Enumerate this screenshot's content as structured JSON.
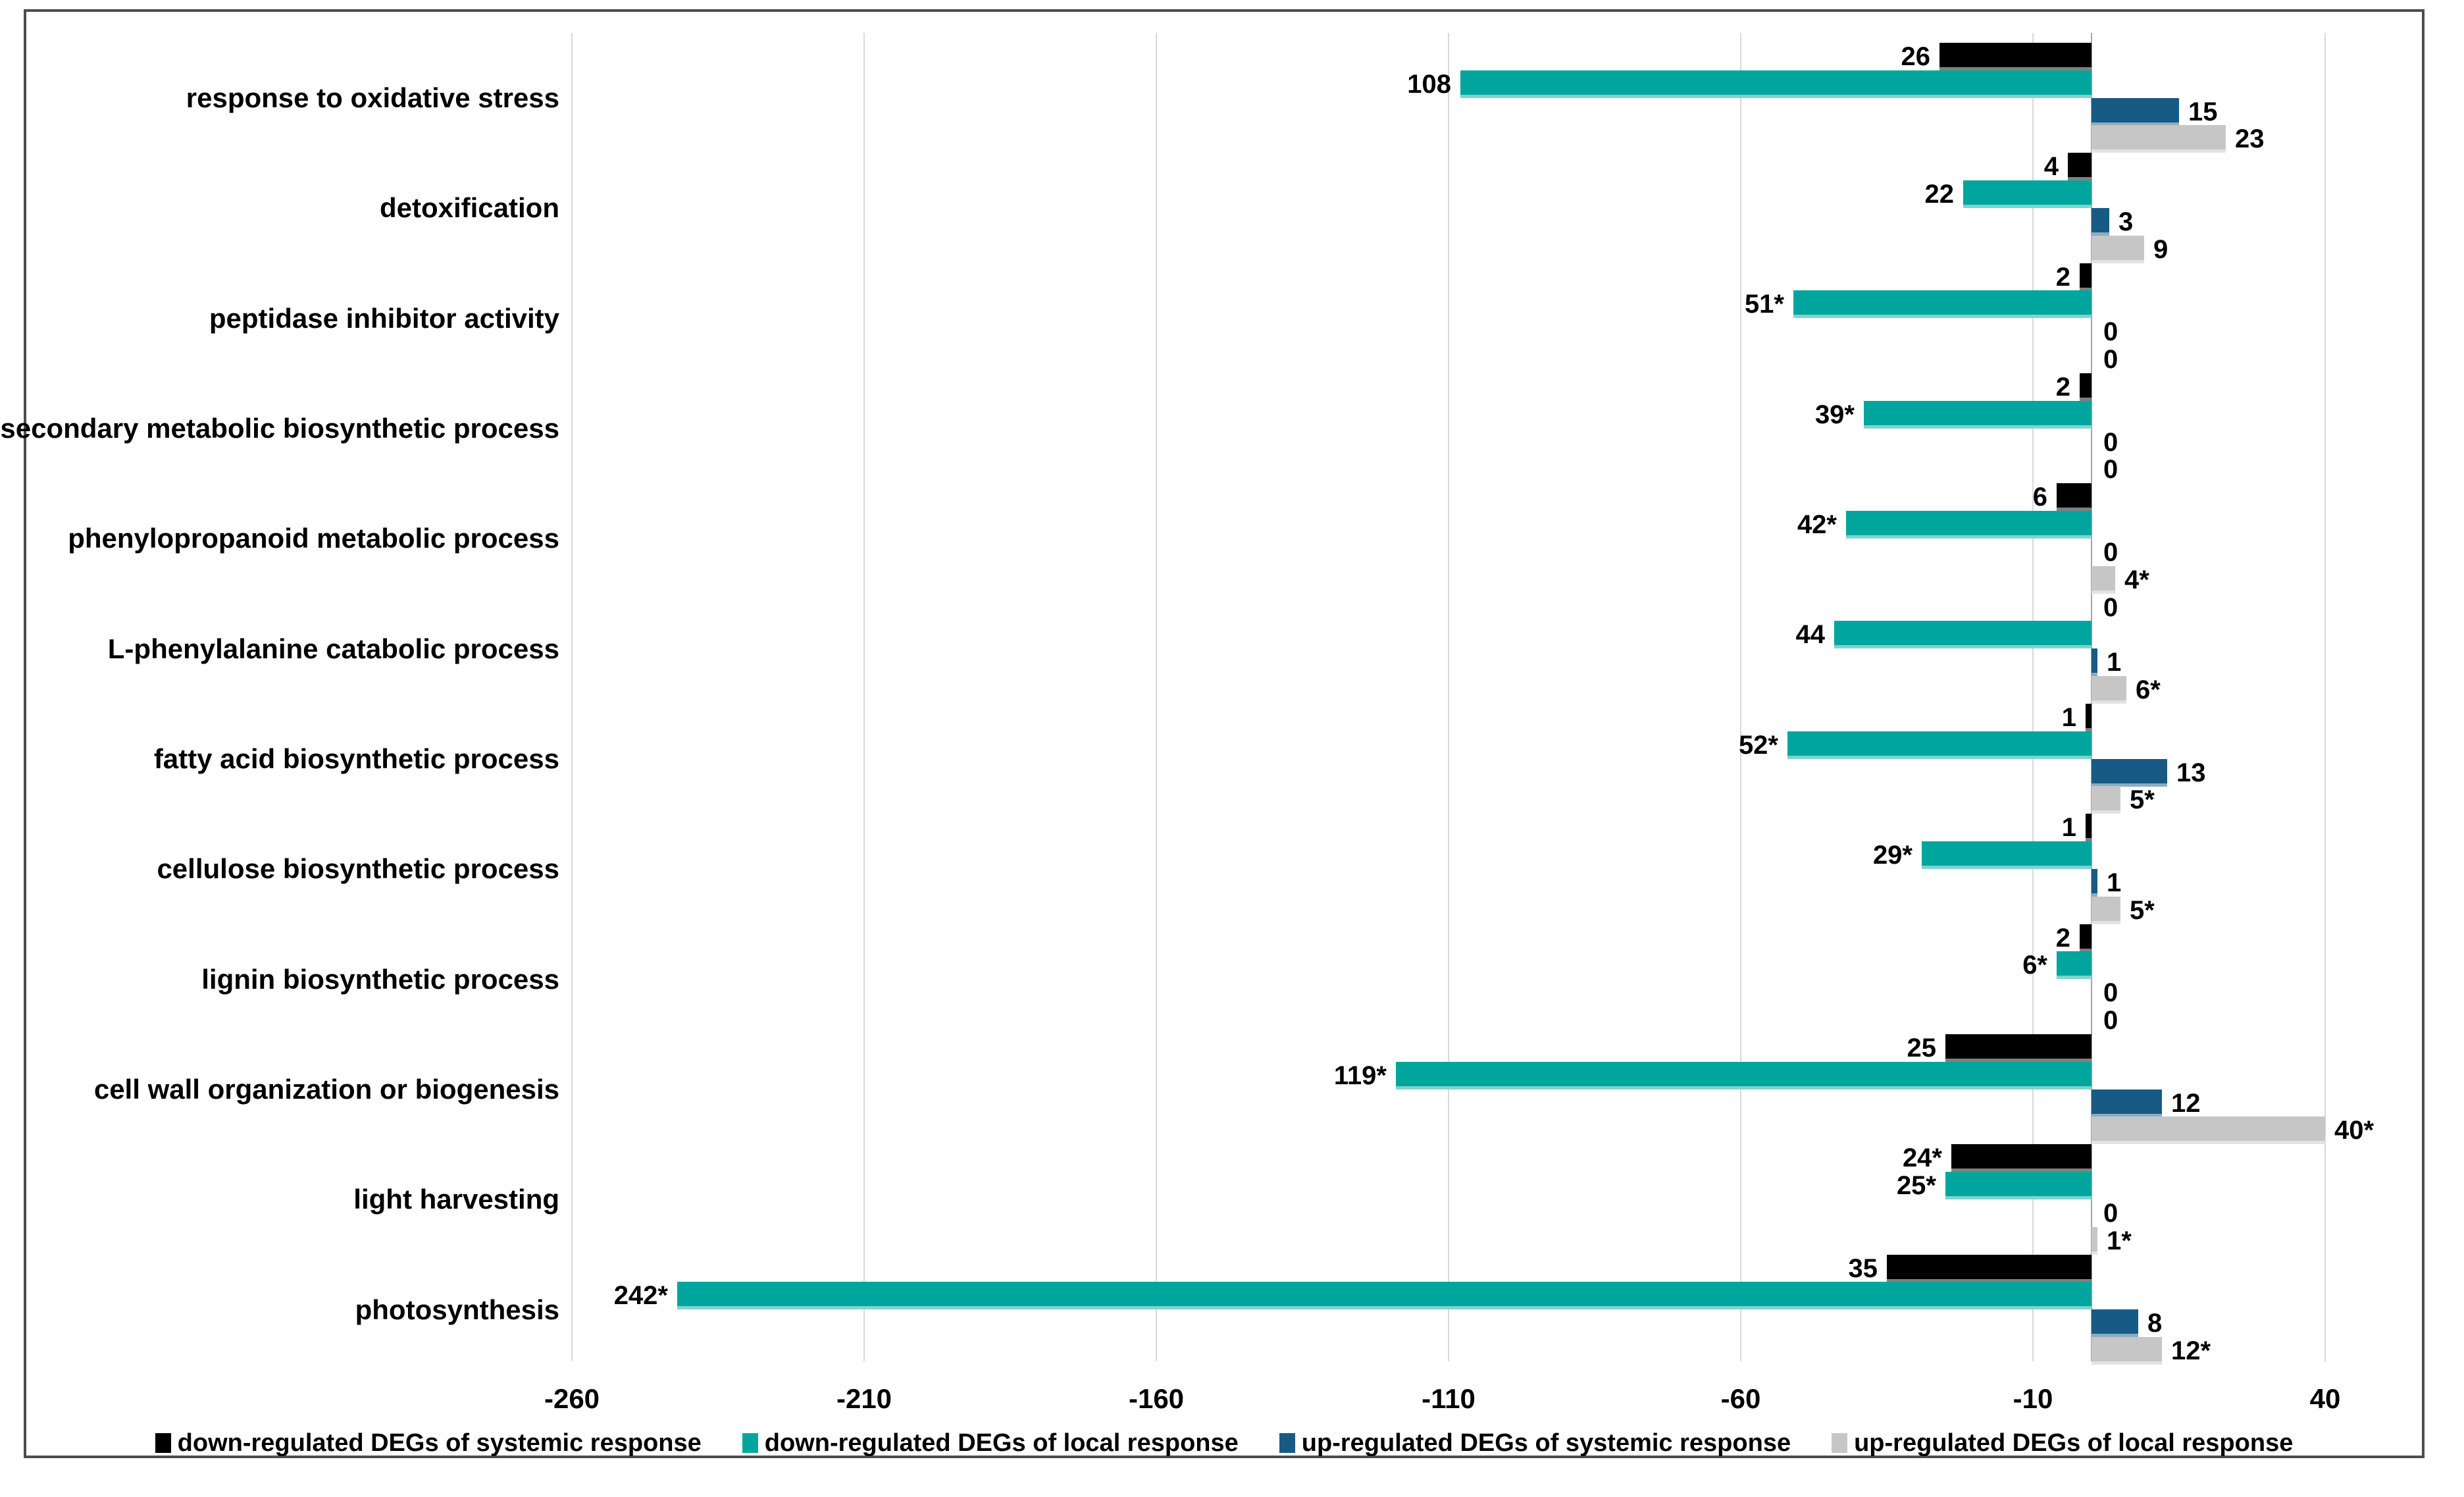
{
  "chart_data": {
    "type": "bar",
    "orientation": "horizontal",
    "title": "",
    "xlabel": "",
    "ylabel": "",
    "grid": "vertical-gridlines-at-ticks",
    "legend_position": "bottom",
    "x_ticks": [
      -260,
      -210,
      -160,
      -110,
      -60,
      -10,
      40
    ],
    "x_tick_labels": [
      "-260",
      "-210",
      "-160",
      "-110",
      "-60",
      "-10",
      "40"
    ],
    "xlim": [
      -295,
      58
    ],
    "categories": [
      "response to oxidative stress",
      "detoxification",
      "peptidase inhibitor activity",
      "secondary metabolic biosynthetic process",
      "phenylopropanoid metabolic process",
      "L-phenylalanine catabolic process",
      "fatty acid biosynthetic process",
      "cellulose biosynthetic process",
      "lignin biosynthetic process",
      "cell wall organization or biogenesis",
      "light harvesting",
      "photosynthesis"
    ],
    "series": [
      {
        "name": "down-regulated DEGs of systemic response",
        "color": "#000000",
        "values": [
          -26,
          -4,
          -2,
          -2,
          -6,
          0,
          -1,
          -1,
          -2,
          -25,
          -24,
          -35
        ],
        "labels": [
          "26",
          "4",
          "2",
          "2",
          "6",
          "0",
          "1",
          "1",
          "2",
          "25",
          "24*",
          "35"
        ]
      },
      {
        "name": "down-regulated DEGs of local response",
        "color": "#00a69e",
        "values": [
          -108,
          -22,
          -51,
          -39,
          -42,
          -44,
          -52,
          -29,
          -6,
          -119,
          -25,
          -242
        ],
        "labels": [
          "108",
          "22",
          "51*",
          "39*",
          "42*",
          "44",
          "52*",
          "29*",
          "6*",
          "119*",
          "25*",
          "242*"
        ]
      },
      {
        "name": "up-regulated DEGs of systemic response",
        "color": "#175a85",
        "values": [
          15,
          3,
          0,
          0,
          0,
          1,
          13,
          1,
          0,
          12,
          0,
          8
        ],
        "labels": [
          "15",
          "3",
          "0",
          "0",
          "0",
          "1",
          "13",
          "1",
          "0",
          "12",
          "0",
          "8"
        ]
      },
      {
        "name": "up-regulated DEGs of local response",
        "color": "#c6c6c6",
        "values": [
          23,
          9,
          0,
          0,
          4,
          6,
          5,
          5,
          0,
          40,
          1,
          12
        ],
        "labels": [
          "23",
          "9",
          "0",
          "0",
          "4*",
          "6*",
          "5*",
          "5*",
          "0",
          "40*",
          "1*",
          "12*"
        ]
      }
    ]
  },
  "colors": {
    "frame_border": "#4d4d4d",
    "gridline": "#d9d9d9",
    "zero_line": "#a6a6a6",
    "text": "#000000",
    "background": "#ffffff"
  }
}
